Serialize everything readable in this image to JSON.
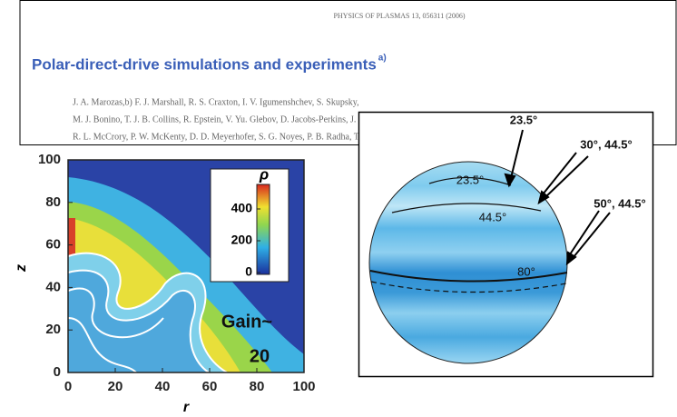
{
  "header": {
    "journal": "PHYSICS OF PLASMAS 13, 056311 (2006)",
    "title": "Polar-direct-drive simulations and experiments",
    "title_note": "a)",
    "authors": [
      "J. A. Marozas,b) F. J. Marshall, R. S. Craxton, I. V. Igumenshchev, S. Skupsky,",
      "M. J. Bonino, T. J. B. Collins, R. Epstein, V. Yu. Glebov, D. Jacobs-Perkins, J. P. Knauer,",
      "R. L. McCrory, P. W. McKenty, D. D. Meyerhofer, S. G. Noyes, P. B. Radha, T. C. Sangster"
    ]
  },
  "plot": {
    "x_label": "r",
    "y_label": "z",
    "xlim": [
      0,
      100
    ],
    "ylim": [
      0,
      100
    ],
    "xticks": [
      0,
      20,
      40,
      60,
      80,
      100
    ],
    "yticks": [
      0,
      20,
      40,
      60,
      80,
      100
    ],
    "colorbar": {
      "label": "ρ",
      "ticks": [
        0,
        200,
        400
      ]
    },
    "annotation": [
      "Gain~",
      "20"
    ]
  },
  "diagram": {
    "callouts": [
      "23.5°",
      "30°, 44.5°",
      "50°, 44.5°"
    ],
    "rings": [
      "23.5°",
      "44.5°",
      "80°"
    ]
  }
}
